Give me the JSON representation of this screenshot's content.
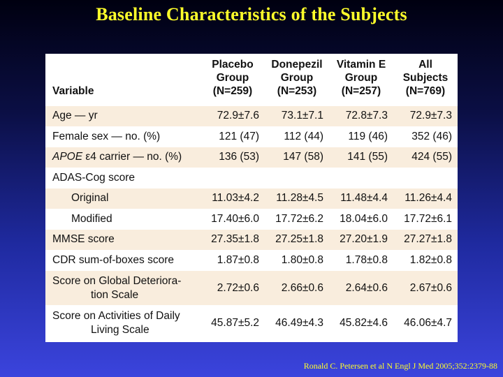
{
  "title": "Baseline Characteristics of the Subjects",
  "columns": [
    {
      "line1": "Placebo",
      "line2": "Group",
      "line3": "(N=259)"
    },
    {
      "line1": "Donepezil",
      "line2": "Group",
      "line3": "(N=253)"
    },
    {
      "line1": "Vitamin E",
      "line2": "Group",
      "line3": "(N=257)"
    },
    {
      "line1": "All",
      "line2": "Subjects",
      "line3": "(N=769)"
    }
  ],
  "variable_header": "Variable",
  "rows": {
    "age": {
      "label": "Age — yr",
      "values": [
        "72.9±7.6",
        "73.1±7.1",
        "72.8±7.3",
        "72.9±7.3"
      ]
    },
    "female": {
      "label": "Female sex — no. (%)",
      "values": [
        "121 (47)",
        "112 (44)",
        "119 (46)",
        "352 (46)"
      ]
    },
    "apoe": {
      "label_italic": "APOE",
      "label_rest": " ε4 carrier — no. (%)",
      "values": [
        "136 (53)",
        "147 (58)",
        "141 (55)",
        "424 (55)"
      ]
    },
    "adas": {
      "label": "ADAS-Cog score"
    },
    "original": {
      "label": "Original",
      "values": [
        "11.03±4.2",
        "11.28±4.5",
        "11.48±4.4",
        "11.26±4.4"
      ]
    },
    "modified": {
      "label": "Modified",
      "values": [
        "17.40±6.0",
        "17.72±6.2",
        "18.04±6.0",
        "17.72±6.1"
      ]
    },
    "mmse": {
      "label": "MMSE score",
      "values": [
        "27.35±1.8",
        "27.25±1.8",
        "27.20±1.9",
        "27.27±1.8"
      ]
    },
    "cdr": {
      "label": "CDR sum-of-boxes score",
      "values": [
        "1.87±0.8",
        "1.80±0.8",
        "1.78±0.8",
        "1.82±0.8"
      ]
    },
    "gds": {
      "label_line1": "Score on Global Deteriora-",
      "label_line2": "tion Scale",
      "values": [
        "2.72±0.6",
        "2.66±0.6",
        "2.64±0.6",
        "2.67±0.6"
      ]
    },
    "adl": {
      "label_line1": "Score on Activities of Daily",
      "label_line2": "Living Scale",
      "values": [
        "45.87±5.2",
        "46.49±4.3",
        "45.82±4.6",
        "46.06±4.7"
      ]
    }
  },
  "citation": "Ronald C. Petersen et al N Engl J Med 2005;352:2379-88",
  "colors": {
    "title": "#ffff2a",
    "row_shade": "#f9eddd",
    "background_top": "#000010",
    "background_bottom": "#3b44dd"
  }
}
